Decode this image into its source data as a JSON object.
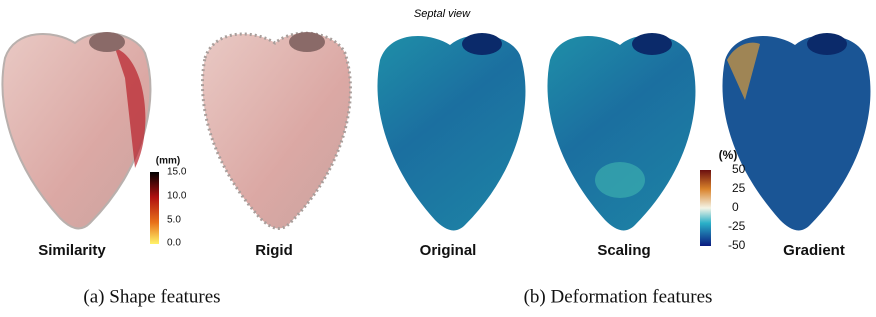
{
  "panels": [
    {
      "caption": "(a) Shape features",
      "items": [
        "Similarity",
        "Rigid"
      ],
      "colorbar": {
        "unit": "(mm)",
        "ticks": [
          "15.0",
          "10.0",
          "5.0",
          "0.0"
        ]
      }
    },
    {
      "caption": "(b) Deformation features",
      "view": "Septal view",
      "items": [
        "Original",
        "Scaling",
        "Gradient"
      ],
      "colorbar": {
        "unit": "(%)",
        "ticks": [
          "50",
          "25",
          "0",
          "-25",
          "-50"
        ]
      }
    }
  ]
}
